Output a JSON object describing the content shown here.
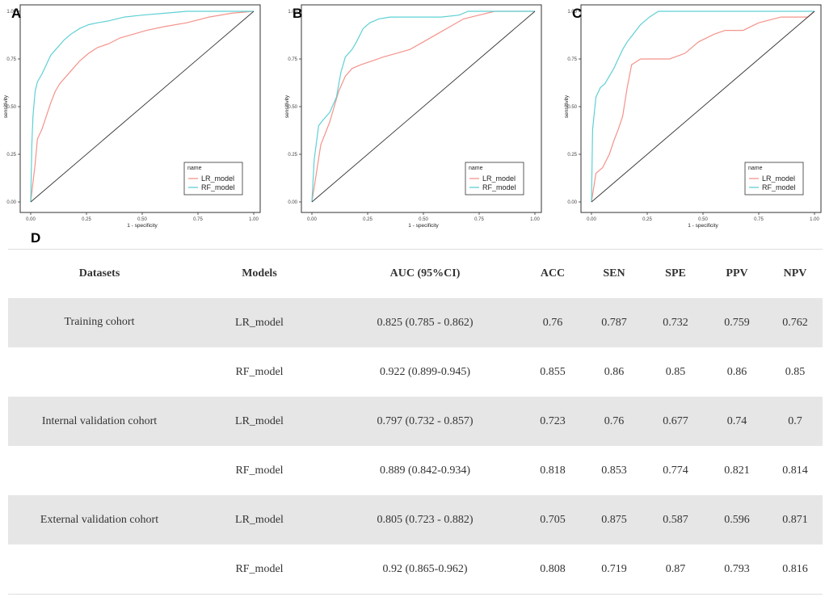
{
  "panels": [
    {
      "letter": "A",
      "x_ticks": [
        "0.00",
        "0.25",
        "0.50",
        "0.75",
        "1.00"
      ],
      "y_ticks": [
        "0.00",
        "0.25",
        "0.50",
        "0.75",
        "1.00"
      ],
      "xlabel": "1 - specificity",
      "ylabel": "sensitivity",
      "legend_title": "name",
      "legend": [
        "LR_model",
        "RF_model"
      ]
    },
    {
      "letter": "B",
      "x_ticks": [
        "0.00",
        "0.25",
        "0.50",
        "0.75",
        "1.00"
      ],
      "y_ticks": [
        "0.00",
        "0.25",
        "0.50",
        "0.75",
        "1.00"
      ],
      "xlabel": "1 - specificity",
      "ylabel": "sensitivity",
      "legend_title": "name",
      "legend": [
        "LR_model",
        "RF_model"
      ]
    },
    {
      "letter": "C",
      "x_ticks": [
        "0.00",
        "0.25",
        "0.50",
        "0.75",
        "1.00"
      ],
      "y_ticks": [
        "0.00",
        "0.25",
        "0.50",
        "0.75",
        "1.00"
      ],
      "xlabel": "1 - specificity",
      "ylabel": "sensitivity",
      "legend_title": "name",
      "legend": [
        "LR_model",
        "RF_model"
      ]
    }
  ],
  "colors": {
    "lr": "#f4938b",
    "rf": "#5fd0d4",
    "diag": "#333333",
    "shade": "#e6e6e6"
  },
  "chart_data": [
    {
      "type": "line",
      "panel": "A",
      "title": "",
      "xlabel": "1 - specificity",
      "ylabel": "sensitivity",
      "xlim": [
        0,
        1
      ],
      "ylim": [
        0,
        1
      ],
      "series": [
        {
          "name": "LR_model",
          "x": [
            0,
            0.02,
            0.03,
            0.05,
            0.07,
            0.09,
            0.11,
            0.13,
            0.16,
            0.19,
            0.22,
            0.26,
            0.3,
            0.35,
            0.4,
            0.46,
            0.52,
            0.6,
            0.7,
            0.8,
            0.9,
            1.0
          ],
          "y": [
            0,
            0.2,
            0.33,
            0.38,
            0.45,
            0.52,
            0.58,
            0.62,
            0.66,
            0.7,
            0.74,
            0.78,
            0.81,
            0.83,
            0.86,
            0.88,
            0.9,
            0.92,
            0.94,
            0.97,
            0.99,
            1.0
          ]
        },
        {
          "name": "RF_model",
          "x": [
            0,
            0.005,
            0.01,
            0.02,
            0.03,
            0.05,
            0.07,
            0.09,
            0.12,
            0.15,
            0.18,
            0.22,
            0.26,
            0.3,
            0.35,
            0.42,
            0.5,
            0.6,
            0.7,
            0.8,
            0.9,
            1.0
          ],
          "y": [
            0,
            0.3,
            0.45,
            0.58,
            0.63,
            0.67,
            0.72,
            0.77,
            0.81,
            0.85,
            0.88,
            0.91,
            0.93,
            0.94,
            0.95,
            0.97,
            0.98,
            0.99,
            1.0,
            1.0,
            1.0,
            1.0
          ]
        },
        {
          "name": "reference",
          "x": [
            0,
            1
          ],
          "y": [
            0,
            1
          ]
        }
      ]
    },
    {
      "type": "line",
      "panel": "B",
      "title": "",
      "xlabel": "1 - specificity",
      "ylabel": "sensitivity",
      "xlim": [
        0,
        1
      ],
      "ylim": [
        0,
        1
      ],
      "series": [
        {
          "name": "LR_model",
          "x": [
            0,
            0.02,
            0.04,
            0.06,
            0.08,
            0.1,
            0.12,
            0.15,
            0.18,
            0.22,
            0.27,
            0.32,
            0.38,
            0.44,
            0.5,
            0.56,
            0.62,
            0.68,
            0.75,
            0.82,
            0.9,
            1.0
          ],
          "y": [
            0,
            0.15,
            0.3,
            0.36,
            0.42,
            0.5,
            0.58,
            0.66,
            0.7,
            0.72,
            0.74,
            0.76,
            0.78,
            0.8,
            0.84,
            0.88,
            0.92,
            0.96,
            0.98,
            1.0,
            1.0,
            1.0
          ]
        },
        {
          "name": "RF_model",
          "x": [
            0,
            0.01,
            0.03,
            0.05,
            0.08,
            0.11,
            0.13,
            0.15,
            0.18,
            0.2,
            0.23,
            0.26,
            0.3,
            0.35,
            0.42,
            0.5,
            0.58,
            0.66,
            0.7,
            0.8,
            0.9,
            1.0
          ],
          "y": [
            0,
            0.22,
            0.4,
            0.43,
            0.47,
            0.55,
            0.68,
            0.76,
            0.8,
            0.84,
            0.91,
            0.94,
            0.96,
            0.97,
            0.97,
            0.97,
            0.97,
            0.98,
            1.0,
            1.0,
            1.0,
            1.0
          ]
        },
        {
          "name": "reference",
          "x": [
            0,
            1
          ],
          "y": [
            0,
            1
          ]
        }
      ]
    },
    {
      "type": "line",
      "panel": "C",
      "title": "",
      "xlabel": "1 - specificity",
      "ylabel": "sensitivity",
      "xlim": [
        0,
        1
      ],
      "ylim": [
        0,
        1
      ],
      "series": [
        {
          "name": "LR_model",
          "x": [
            0,
            0.02,
            0.05,
            0.08,
            0.1,
            0.12,
            0.14,
            0.16,
            0.18,
            0.22,
            0.28,
            0.35,
            0.42,
            0.48,
            0.55,
            0.6,
            0.68,
            0.75,
            0.85,
            0.92,
            0.97,
            1.0
          ],
          "y": [
            0,
            0.15,
            0.18,
            0.25,
            0.32,
            0.38,
            0.45,
            0.6,
            0.72,
            0.75,
            0.75,
            0.75,
            0.78,
            0.84,
            0.88,
            0.9,
            0.9,
            0.94,
            0.97,
            0.97,
            0.97,
            1.0
          ]
        },
        {
          "name": "RF_model",
          "x": [
            0,
            0.005,
            0.02,
            0.04,
            0.06,
            0.08,
            0.1,
            0.12,
            0.14,
            0.16,
            0.18,
            0.2,
            0.22,
            0.24,
            0.26,
            0.3,
            0.4,
            0.5,
            0.6,
            0.75,
            0.9,
            1.0
          ],
          "y": [
            0,
            0.38,
            0.55,
            0.6,
            0.62,
            0.66,
            0.7,
            0.75,
            0.8,
            0.84,
            0.87,
            0.9,
            0.93,
            0.95,
            0.97,
            1.0,
            1.0,
            1.0,
            1.0,
            1.0,
            1.0,
            1.0
          ]
        },
        {
          "name": "reference",
          "x": [
            0,
            1
          ],
          "y": [
            0,
            1
          ]
        }
      ]
    },
    {
      "type": "table",
      "panel": "D",
      "columns": [
        "Datasets",
        "Models",
        "AUC (95%CI)",
        "ACC",
        "SEN",
        "SPE",
        "PPV",
        "NPV"
      ],
      "rows": [
        [
          "Training cohort",
          "LR_model",
          "0.825 (0.785 - 0.862)",
          "0.76",
          "0.787",
          "0.732",
          "0.759",
          "0.762"
        ],
        [
          "",
          "RF_model",
          "0.922 (0.899-0.945)",
          "0.855",
          "0.86",
          "0.85",
          "0.86",
          "0.85"
        ],
        [
          "Internal validation cohort",
          "LR_model",
          "0.797 (0.732 - 0.857)",
          "0.723",
          "0.76",
          "0.677",
          "0.74",
          "0.7"
        ],
        [
          "",
          "RF_model",
          "0.889 (0.842-0.934)",
          "0.818",
          "0.853",
          "0.774",
          "0.821",
          "0.814"
        ],
        [
          "External validation cohort",
          "LR_model",
          "0.805 (0.723 - 0.882)",
          "0.705",
          "0.875",
          "0.587",
          "0.596",
          "0.871"
        ],
        [
          "",
          "RF_model",
          "0.92 (0.865-0.962)",
          "0.808",
          "0.719",
          "0.87",
          "0.793",
          "0.816"
        ]
      ]
    }
  ],
  "table_letter": "D"
}
